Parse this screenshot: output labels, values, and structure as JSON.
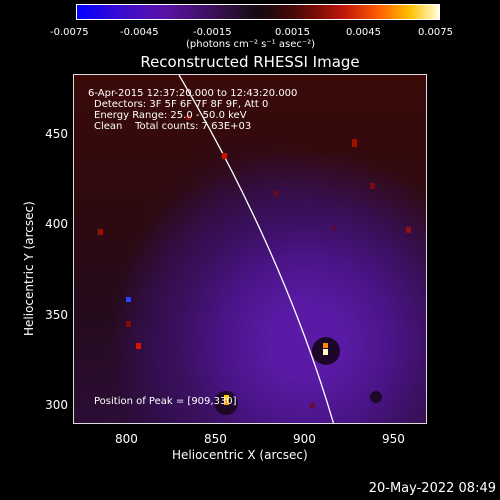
{
  "colorbar": {
    "ticks": [
      "-0.0075",
      "-0.0045",
      "-0.0015",
      "0.0015",
      "0.0045",
      "0.0075"
    ],
    "unit": "(photons cm⁻² s⁻¹ asec⁻²)"
  },
  "title": "Reconstructed RHESSI Image",
  "info": {
    "line1": "6-Apr-2015 12:37:20.000 to 12:43:20.000",
    "line2": "Detectors: 3F 5F 6F 7F 8F 9F, Att 0",
    "line3": "Energy Range: 25.0 - 50.0 keV",
    "line4": "Clean    Total counts: 7.63E+03",
    "peak": "Position of Peak = [909,330]"
  },
  "axes": {
    "x_ticks": [
      "800",
      "850",
      "900",
      "950"
    ],
    "y_ticks": [
      "450",
      "400",
      "350",
      "300"
    ],
    "xlabel": "Heliocentric X (arcsec)",
    "ylabel": "Heliocentric Y (arcsec)"
  },
  "timestamp": "20-May-2022 08:49"
}
